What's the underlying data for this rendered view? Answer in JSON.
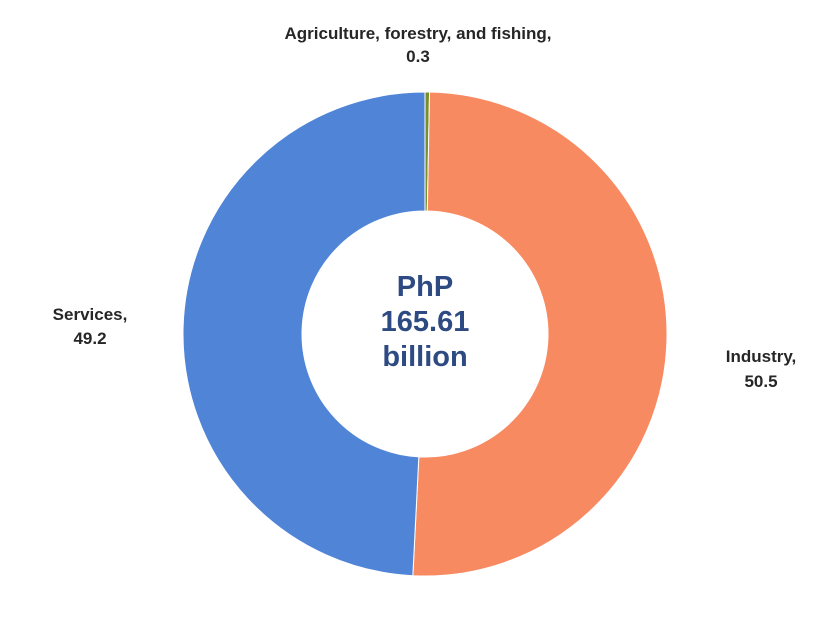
{
  "chart_data": {
    "type": "pie",
    "style": "donut",
    "categories": [
      "Agriculture, forestry, and fishing",
      "Industry",
      "Services"
    ],
    "values": [
      0.3,
      50.5,
      49.2
    ],
    "data_labels": [
      [
        "Agriculture, forestry, and fishing,",
        "0.3"
      ],
      [
        "Industry,",
        "50.5"
      ],
      [
        "Services,",
        "49.2"
      ]
    ],
    "colors": [
      "#7a8f2a",
      "#f88a62",
      "#4f84d6"
    ],
    "center_label": [
      "PhP",
      "165.61",
      "billion"
    ],
    "legend": false
  }
}
